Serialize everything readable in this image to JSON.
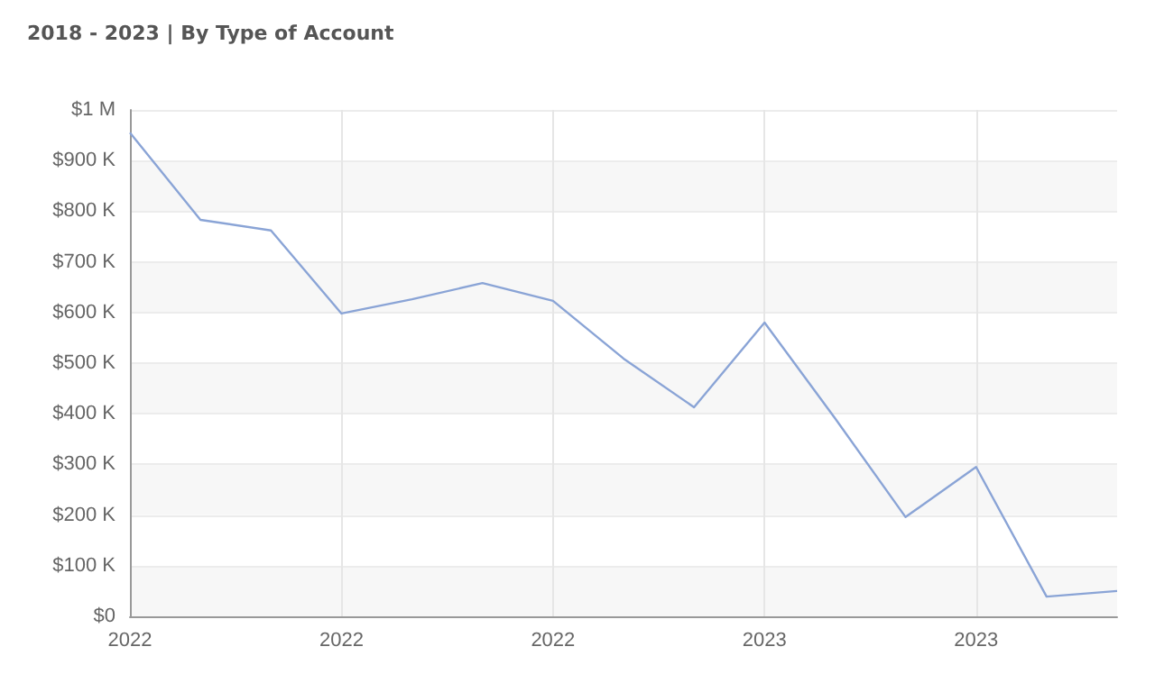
{
  "chart_data": {
    "type": "line",
    "title": "2018 - 2023 | By Type of Account",
    "categories": [
      "2022",
      null,
      null,
      "2022",
      null,
      null,
      "2022",
      null,
      null,
      "2023",
      null,
      null,
      "2023",
      null,
      null
    ],
    "series": [
      {
        "color": "#8aa4d6",
        "values": [
          955000,
          783000,
          762000,
          598000,
          626000,
          658000,
          623000,
          509000,
          413000,
          580000,
          391000,
          196000,
          295000,
          39000,
          50000
        ]
      }
    ],
    "ylim": [
      0,
      1000000
    ],
    "yticks": [
      {
        "value": 0,
        "label": "$0"
      },
      {
        "value": 100000,
        "label": "$100 K"
      },
      {
        "value": 200000,
        "label": "$200 K"
      },
      {
        "value": 300000,
        "label": "$300 K"
      },
      {
        "value": 400000,
        "label": "$400 K"
      },
      {
        "value": 500000,
        "label": "$500 K"
      },
      {
        "value": 600000,
        "label": "$600 K"
      },
      {
        "value": 700000,
        "label": "$700 K"
      },
      {
        "value": 800000,
        "label": "$800 K"
      },
      {
        "value": 900000,
        "label": "$900 K"
      },
      {
        "value": 1000000,
        "label": "$1 M"
      }
    ],
    "grid": true,
    "marker": "none",
    "line_style": "solid"
  }
}
